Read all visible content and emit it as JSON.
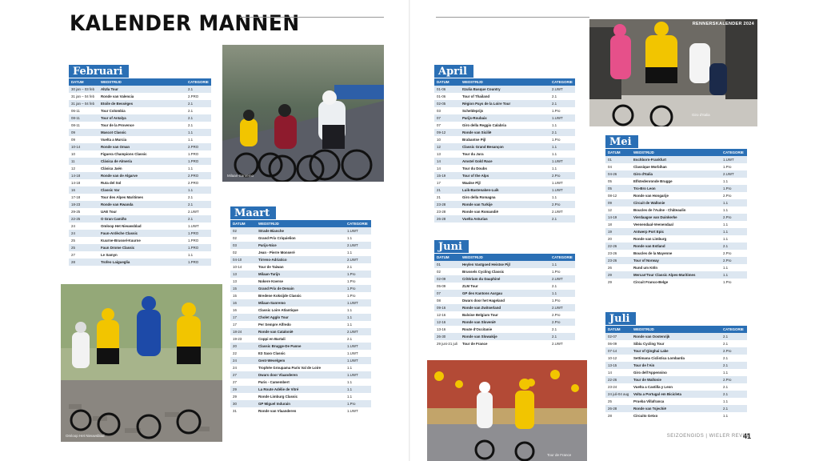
{
  "page": {
    "title": "KALENDER MANNEN",
    "header_tag": "RENNERSKALENDER 2024",
    "footer": "SEIZOENGIDS | WIELER REVUE",
    "page_number": "41"
  },
  "columns": {
    "date": "DATUM",
    "race": "WEDSTRIJD",
    "category": "CATEGORIE"
  },
  "photos": {
    "p1_caption": "Milaan-Sanremo",
    "p2_caption": "Omloop Het Nieuwsblad",
    "p3_caption": "Tour de France",
    "p4_caption": "Giro d'Italia"
  },
  "colors": {
    "accent": "#2a6fb5",
    "stripe": "#dde7f1"
  },
  "months": {
    "februari": {
      "name": "Februari",
      "rows": [
        [
          "30 jan – 03 feb",
          "AlUla Tour",
          "2.1"
        ],
        [
          "31 jan – 04 feb",
          "Ronde van Valencia",
          "2.PRO"
        ],
        [
          "31 jan – 04 feb",
          "Etoile de Bessèges",
          "2.1"
        ],
        [
          "06-11",
          "Tour Colombia",
          "2.1"
        ],
        [
          "08-11",
          "Tour of Antalya",
          "2.1"
        ],
        [
          "08-11",
          "Tour de la Provence",
          "2.1"
        ],
        [
          "09",
          "Mascot Classic",
          "1.1"
        ],
        [
          "09",
          "Vuelta a Murcia",
          "1.1"
        ],
        [
          "10-14",
          "Ronde van Oman",
          "2.PRO"
        ],
        [
          "10",
          "Figuera Champions Classic",
          "1.PRO"
        ],
        [
          "11",
          "Clásica de Almería",
          "1.PRO"
        ],
        [
          "12",
          "Clásica Jaén",
          "1.1"
        ],
        [
          "14-18",
          "Ronde van de Algarve",
          "2.PRO"
        ],
        [
          "14-18",
          "Ruta del Sol",
          "2.PRO"
        ],
        [
          "16",
          "Classic Var",
          "1.1"
        ],
        [
          "17-18",
          "Tour des Alpes Maritimes",
          "2.1"
        ],
        [
          "18-23",
          "Ronde van Rwanda",
          "2.1"
        ],
        [
          "29-25",
          "UAE Tour",
          "2.UWT"
        ],
        [
          "22-25",
          "O Gran Camiño",
          "2.1"
        ],
        [
          "24",
          "Omloop Het Nieuwsblad",
          "1.UWT"
        ],
        [
          "24",
          "Faun-Ardèche Classic",
          "1.PRO"
        ],
        [
          "25",
          "Kuurne-Brussel-Kuurne",
          "1.PRO"
        ],
        [
          "25",
          "Faun Drome Classic",
          "1.PRO"
        ],
        [
          "27",
          "Le Samyn",
          "1.1"
        ],
        [
          "28",
          "Trofeo Laigueglia",
          "1.PRO"
        ]
      ]
    },
    "maart": {
      "name": "Maart",
      "rows": [
        [
          "02",
          "Strade Bianche",
          "1.UWT"
        ],
        [
          "02",
          "Grand Prix Criquielion",
          "1.1"
        ],
        [
          "03",
          "Parijs-Nice",
          "2.UWT"
        ],
        [
          "02",
          "Jean - Pierre Monseré",
          "1.1"
        ],
        [
          "04-10",
          "Tirreno-Adriatico",
          "2.UWT"
        ],
        [
          "10-14",
          "Tour de Taiwan",
          "2.1"
        ],
        [
          "13",
          "Milaan-Turijn",
          "1.Pro"
        ],
        [
          "13",
          "Nokere Koerse",
          "1.Pro"
        ],
        [
          "15",
          "Grand Prix de Denain",
          "1.Pro"
        ],
        [
          "15",
          "Bredene Koksijde Classic",
          "1.Pro"
        ],
        [
          "16",
          "Milaan-Sanremo",
          "1.UWT"
        ],
        [
          "16",
          "Classic Loire Atlantique",
          "1.1"
        ],
        [
          "17",
          "Cholet Agglo Tour",
          "1.1"
        ],
        [
          "17",
          "Per Sempre Alfredo",
          "1.1"
        ],
        [
          "18-24",
          "Ronde van Catalonië",
          "2.UWT"
        ],
        [
          "19-23",
          "Coppi en Bartali",
          "2.1"
        ],
        [
          "20",
          "Classic Brugge-De Panne",
          "1.UWT"
        ],
        [
          "22",
          "E3 Saxo Classic",
          "1.UWT"
        ],
        [
          "24",
          "Gent-Wevelgem",
          "1.UWT"
        ],
        [
          "24",
          "Trophée Groupama Paris Val de Loire",
          "1.1"
        ],
        [
          "27",
          "Dwars door Vlaanderen",
          "1.UWT"
        ],
        [
          "27",
          "Paris - Camembert",
          "1.1"
        ],
        [
          "29",
          "La Route Adélie de Vitré",
          "1.1"
        ],
        [
          "29",
          "Ronde Limburg Classic",
          "1.1"
        ],
        [
          "30",
          "GP Miguel Indurain",
          "1.Pro"
        ],
        [
          "31",
          "Ronde van Vlaanderen",
          "1.UWT"
        ]
      ]
    },
    "april": {
      "name": "April",
      "rows": [
        [
          "01-06",
          "Itzulia Basque Country",
          "2.UWT"
        ],
        [
          "01-06",
          "Tour of Thailand",
          "2.1"
        ],
        [
          "02-05",
          "Région Pays de la Loire Tour",
          "2.1"
        ],
        [
          "03",
          "Scheldeprijs",
          "1.Pro"
        ],
        [
          "07",
          "Parijs-Roubaix",
          "1.UWT"
        ],
        [
          "07",
          "Giro della Reggio Calabria",
          "1.1"
        ],
        [
          "09-12",
          "Ronde van Sicilië",
          "2.1"
        ],
        [
          "10",
          "Brabantse Pijl",
          "1.Pro"
        ],
        [
          "12",
          "Classic Grand Besançon",
          "1.1"
        ],
        [
          "13",
          "Tour du Jura",
          "1.1"
        ],
        [
          "14",
          "Amstel Gold Race",
          "1.UWT"
        ],
        [
          "14",
          "Tour du Doubs",
          "1.1"
        ],
        [
          "15-19",
          "Tour of the Alps",
          "2.Pro"
        ],
        [
          "17",
          "Waalse Pijl",
          "1.UWT"
        ],
        [
          "21",
          "Luik-Bastenaken-Luik",
          "1.UWT"
        ],
        [
          "21",
          "Giro della Romagna",
          "1.1"
        ],
        [
          "23-28",
          "Ronde van Turkije",
          "2.Pro"
        ],
        [
          "23-28",
          "Ronde van Romandië",
          "2.UWT"
        ],
        [
          "26-28",
          "Vuelta Asturias",
          "2.1"
        ]
      ]
    },
    "juni": {
      "name": "Juni",
      "rows": [
        [
          "01",
          "Heylen Vastgoed Heistse Pijl",
          "1.1"
        ],
        [
          "02",
          "Brussels Cycling Classic",
          "1.Pro"
        ],
        [
          "02-09",
          "Critérium du Dauphiné",
          "2.UWT"
        ],
        [
          "05-09",
          "ZLM Tour",
          "2.1"
        ],
        [
          "07",
          "GP des Kantons Aargau",
          "1.1"
        ],
        [
          "08",
          "Dwars door het Hageland",
          "1.Pro"
        ],
        [
          "09-16",
          "Ronde van Zwitserland",
          "2.UWT"
        ],
        [
          "12-16",
          "Baloise Belgium Tour",
          "2.Pro"
        ],
        [
          "12-16",
          "Ronde van Slovenië",
          "2.Pro"
        ],
        [
          "13-16",
          "Route d'Occitanie",
          "2.1"
        ],
        [
          "26-30",
          "Ronde van Slowakije",
          "2.1"
        ],
        [
          "29 juni-21 juli",
          "Tour de France",
          "2.UWT"
        ]
      ]
    },
    "mei": {
      "name": "Mei",
      "rows": [
        [
          "01",
          "Eschborn-Frankfurt",
          "1.UWT"
        ],
        [
          "04",
          "Classique Morbihan",
          "1.Pro"
        ],
        [
          "04-26",
          "Giro d'Italia",
          "2.UWT"
        ],
        [
          "05",
          "Elfstedenronde Brugge",
          "1.1"
        ],
        [
          "05",
          "Tro-Bro Leon",
          "1.Pro"
        ],
        [
          "08-12",
          "Ronde van Hongarije",
          "2.Pro"
        ],
        [
          "09",
          "Circuit de Wallonie",
          "1.1"
        ],
        [
          "12",
          "Boucles de l'Aulne - Châteaulin",
          "1.1"
        ],
        [
          "14-19",
          "Vierdaagse van Duinkerke",
          "2.Pro"
        ],
        [
          "18",
          "Veenendaal-Veenendaal",
          "1.1"
        ],
        [
          "19",
          "Antwerp Port Epic",
          "1.1"
        ],
        [
          "20",
          "Ronde van Limburg",
          "1.1"
        ],
        [
          "22-26",
          "Ronde van Estland",
          "2.1"
        ],
        [
          "23-26",
          "Boucles de la Mayenne",
          "2.Pro"
        ],
        [
          "23-26",
          "Tour of Norway",
          "2.Pro"
        ],
        [
          "26",
          "Rund um Köln",
          "1.1"
        ],
        [
          "29",
          "Mercan'Tour Classic Alpes-Maritimes",
          "1.1"
        ],
        [
          "29",
          "Circuit Franco-Belge",
          "1.Pro"
        ]
      ]
    },
    "juli": {
      "name": "Juli",
      "rows": [
        [
          "02-07",
          "Ronde van Oostenrijk",
          "2.1"
        ],
        [
          "06-09",
          "Sibiu Cycling Tour",
          "2.1"
        ],
        [
          "07-14",
          "Tour of Qinghai Lake",
          "2.Pro"
        ],
        [
          "10-12",
          "Settimana Ciclistica Lombarda",
          "2.1"
        ],
        [
          "13-15",
          "Tour de l'Ain",
          "2.1"
        ],
        [
          "14",
          "Giro dell'Appennino",
          "1.1"
        ],
        [
          "22-26",
          "Tour de Wallonie",
          "2.Pro"
        ],
        [
          "23-24",
          "Vuelta a Castilla y Leon",
          "2.1"
        ],
        [
          "24 juli-04 aug",
          "Volta a Portugal em Bicicleta",
          "2.1"
        ],
        [
          "25",
          "Prueba Villafranca",
          "1.1"
        ],
        [
          "26-28",
          "Ronde van Tsjechië",
          "2.1"
        ],
        [
          "28",
          "Circuito Getxo",
          "1.1"
        ]
      ]
    }
  }
}
